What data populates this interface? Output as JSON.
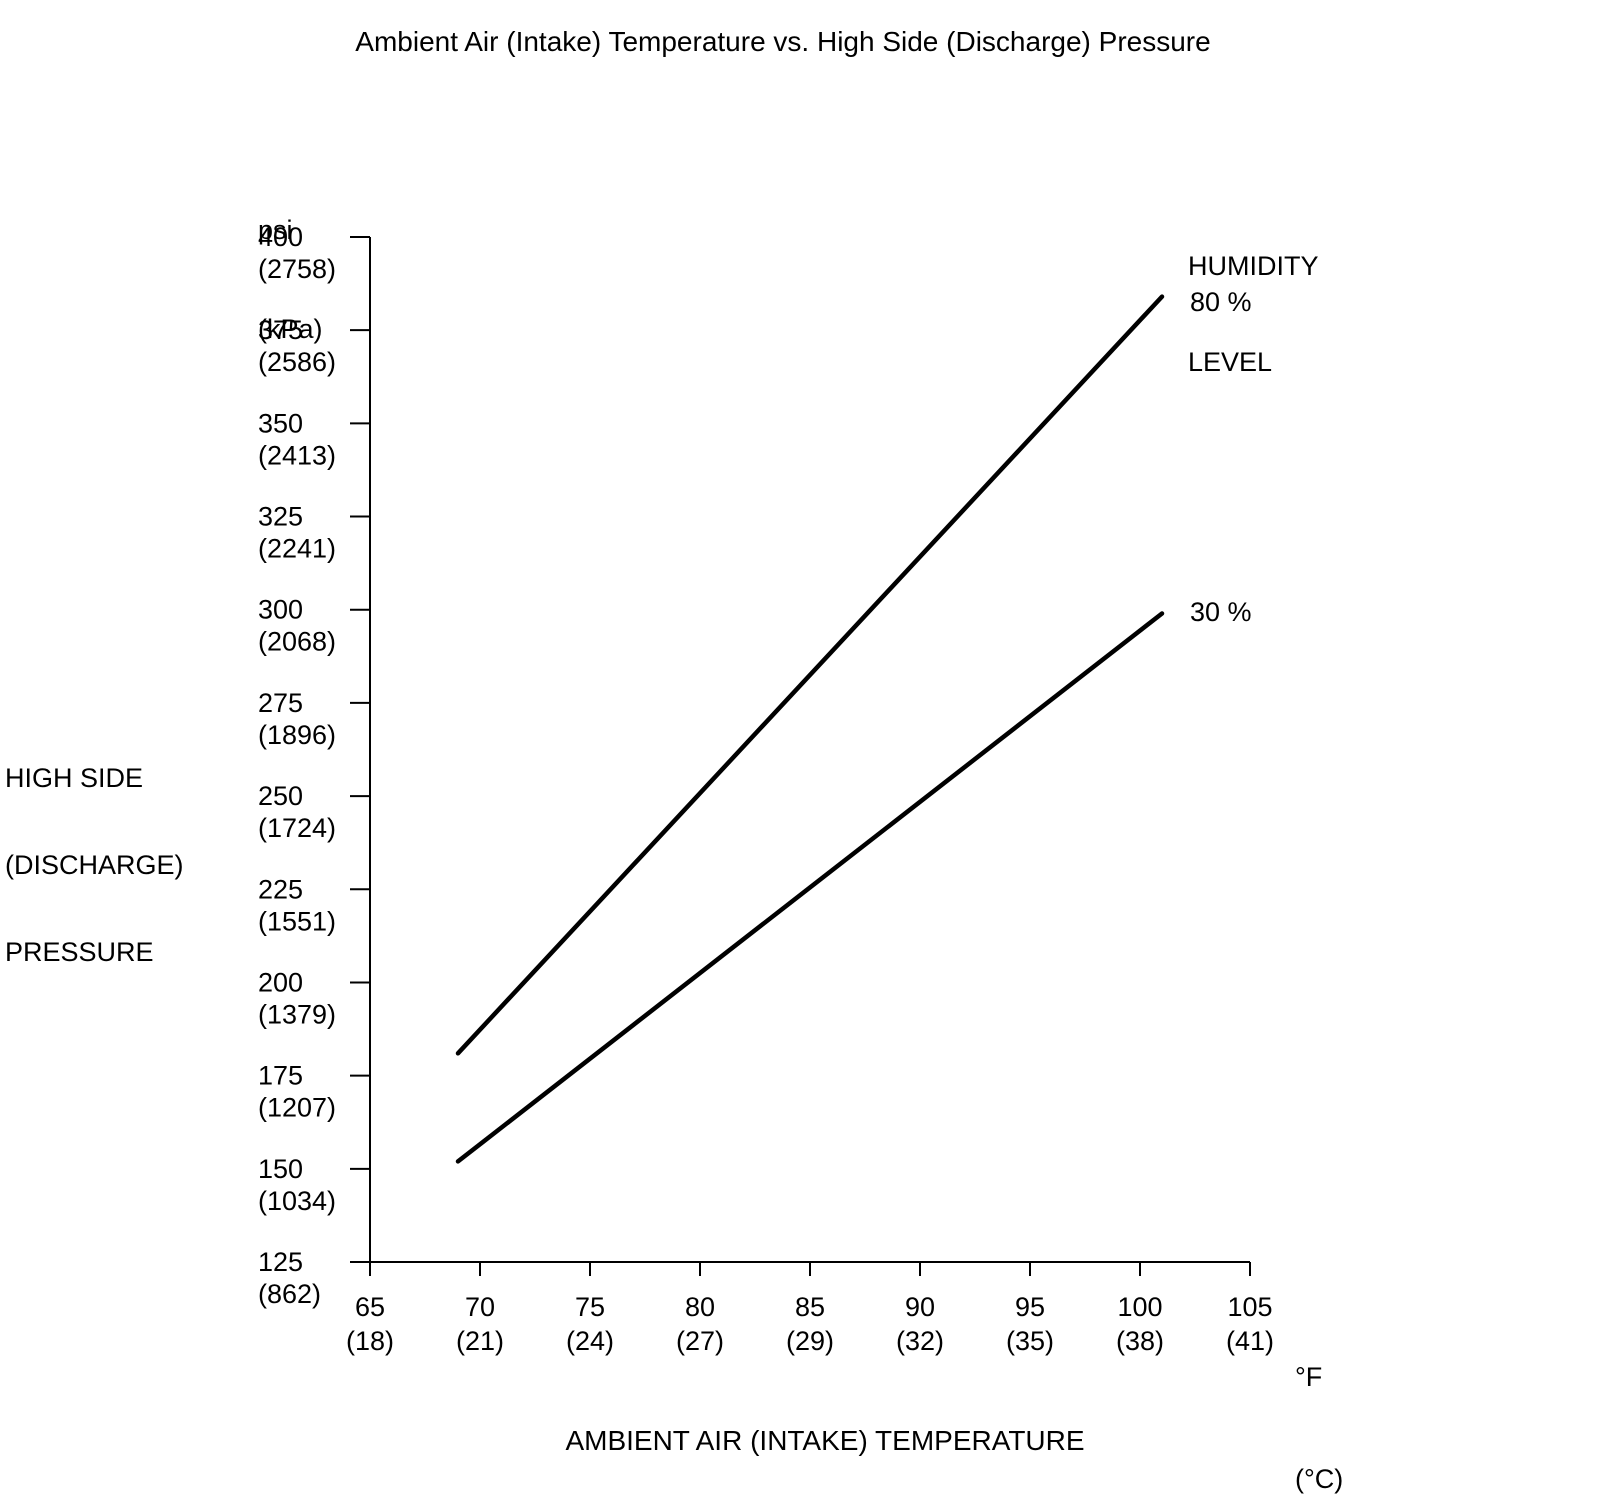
{
  "title": "Ambient Air (Intake) Temperature vs. High Side (Discharge) Pressure",
  "y_axis": {
    "unit_line1": "psi",
    "unit_line2": "(kPa)",
    "title_line1": "HIGH SIDE",
    "title_line2": "(DISCHARGE)",
    "title_line3": "PRESSURE"
  },
  "x_axis": {
    "title": "AMBIENT AIR (INTAKE) TEMPERATURE",
    "unit_line1": "°F",
    "unit_line2": "(°C)"
  },
  "legend": {
    "title_line1": "HUMIDITY",
    "title_line2": "LEVEL"
  },
  "colors": {
    "line": "#000000",
    "text": "#000000",
    "background": "#ffffff"
  },
  "chart_data": {
    "type": "line",
    "title": "Ambient Air (Intake) Temperature vs. High Side (Discharge) Pressure",
    "xlabel": "AMBIENT AIR (INTAKE) TEMPERATURE (°F / °C)",
    "ylabel": "HIGH SIDE (DISCHARGE) PRESSURE (psi / kPa)",
    "legend_title": "HUMIDITY LEVEL",
    "legend_position": "right",
    "grid": false,
    "xlim": [
      65,
      105
    ],
    "ylim": [
      125,
      400
    ],
    "x_ticks_f": [
      65,
      70,
      75,
      80,
      85,
      90,
      95,
      100,
      105
    ],
    "x_ticks_c": [
      18,
      21,
      24,
      27,
      29,
      32,
      35,
      38,
      41
    ],
    "y_ticks_psi": [
      400,
      375,
      350,
      325,
      300,
      275,
      250,
      225,
      200,
      175,
      150,
      125
    ],
    "y_ticks_kpa": [
      2758,
      2586,
      2413,
      2241,
      2068,
      1896,
      1724,
      1551,
      1379,
      1207,
      1034,
      862
    ],
    "series": [
      {
        "name": "80 %",
        "x": [
          69,
          101
        ],
        "y": [
          181,
          384
        ]
      },
      {
        "name": "30 %",
        "x": [
          69,
          101
        ],
        "y": [
          152,
          299
        ]
      }
    ]
  }
}
